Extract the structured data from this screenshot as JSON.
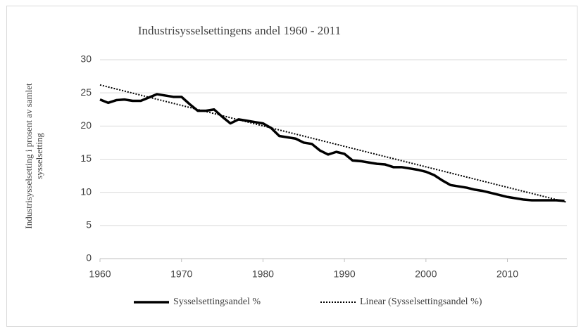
{
  "chart_data": {
    "type": "line",
    "title": "Industrisysselsettingens  andel 1960 - 2011",
    "y_label": [
      "Industrisysselsetting i prosent av samlet",
      "sysselsetting"
    ],
    "xlim": [
      1960,
      2017.3
    ],
    "xticks": [
      1960,
      1970,
      1980,
      1990,
      2000,
      2010
    ],
    "ylim": [
      0,
      30
    ],
    "yticks": [
      0,
      5,
      10,
      15,
      20,
      25,
      30
    ],
    "grid": true,
    "series": [
      {
        "name": "Sysselsettingsandel %",
        "color": "#000000",
        "style": "solid",
        "x": [
          1960,
          1961,
          1962,
          1963,
          1964,
          1965,
          1966,
          1967,
          1968,
          1969,
          1970,
          1971,
          1972,
          1973,
          1974,
          1975,
          1976,
          1977,
          1978,
          1979,
          1980,
          1981,
          1982,
          1983,
          1984,
          1985,
          1986,
          1987,
          1988,
          1989,
          1990,
          1991,
          1992,
          1993,
          1994,
          1995,
          1996,
          1997,
          1998,
          1999,
          2000,
          2001,
          2002,
          2003,
          2004,
          2005,
          2006,
          2007,
          2008,
          2009,
          2010,
          2011,
          2012,
          2013,
          2014,
          2015,
          2016,
          2017
        ],
        "values": [
          24.0,
          23.5,
          23.9,
          24.0,
          23.8,
          23.8,
          24.3,
          24.8,
          24.6,
          24.4,
          24.4,
          23.3,
          22.3,
          22.3,
          22.5,
          21.4,
          20.4,
          21.0,
          20.8,
          20.6,
          20.4,
          19.7,
          18.5,
          18.3,
          18.1,
          17.5,
          17.3,
          16.3,
          15.7,
          16.1,
          15.8,
          14.8,
          14.7,
          14.5,
          14.3,
          14.2,
          13.8,
          13.8,
          13.6,
          13.4,
          13.1,
          12.6,
          11.8,
          11.1,
          10.9,
          10.7,
          10.4,
          10.2,
          9.9,
          9.6,
          9.3,
          9.1,
          8.9,
          8.8,
          8.8,
          8.8,
          8.8,
          8.7
        ]
      },
      {
        "name": "Linear (Sysselsettingsandel %)",
        "color": "#000000",
        "style": "dotted",
        "x": [
          1960,
          2017.3
        ],
        "values": [
          26.2,
          8.5
        ]
      }
    ]
  }
}
